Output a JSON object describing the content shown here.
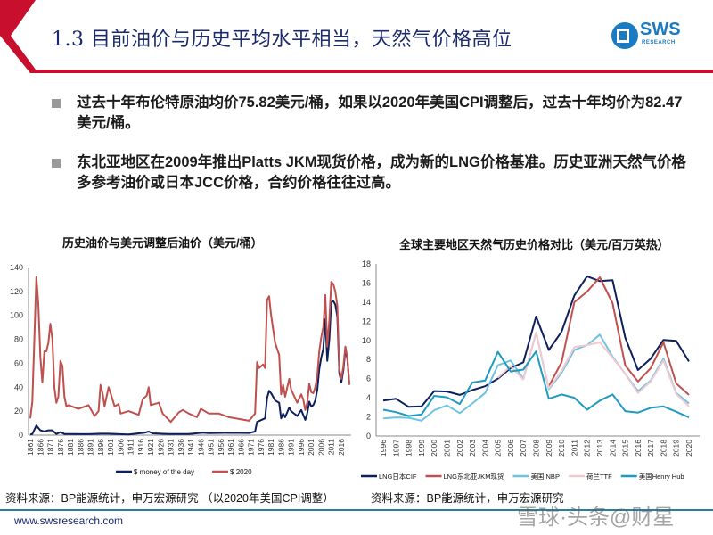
{
  "header": {
    "title": "1.3 目前油价与历史平均水平相当，天然气价格高位",
    "logo_text": "SWS",
    "logo_sub": "RESEARCH"
  },
  "bullets": [
    "过去十年布伦特原油均价75.82美元/桶，如果以2020年美国CPI调整后，过去十年均价为82.47美元/桶。",
    "东北亚地区在2009年推出Platts JKM现货价格，成为新的LNG价格基准。历史亚洲天然气价格多参考油价或日本JCC价格，合约价格往往过高。"
  ],
  "chart_data": [
    {
      "type": "line",
      "title": "历史油价与美元调整后油价（美元/桶）",
      "xlabel": "",
      "ylabel": "",
      "ylim": [
        0,
        140
      ],
      "yticks": [
        0,
        20,
        40,
        60,
        80,
        100,
        120,
        140
      ],
      "xlim": [
        1861,
        2020
      ],
      "xticks": [
        1861,
        1866,
        1871,
        1876,
        1881,
        1886,
        1891,
        1896,
        1901,
        1906,
        1911,
        1916,
        1921,
        1926,
        1931,
        1936,
        1941,
        1946,
        1951,
        1956,
        1961,
        1966,
        1971,
        1976,
        1981,
        1986,
        1991,
        1996,
        2001,
        2006,
        2011,
        2016
      ],
      "legend": "bottom",
      "series": [
        {
          "name": "$ money of the day",
          "color": "#0d1f5c",
          "points": [
            [
              1861,
              0.5
            ],
            [
              1862,
              1
            ],
            [
              1864,
              8
            ],
            [
              1866,
              4
            ],
            [
              1868,
              3
            ],
            [
              1870,
              4
            ],
            [
              1872,
              4
            ],
            [
              1874,
              1
            ],
            [
              1876,
              2.5
            ],
            [
              1878,
              1
            ],
            [
              1880,
              1
            ],
            [
              1890,
              0.8
            ],
            [
              1896,
              1.2
            ],
            [
              1900,
              1.2
            ],
            [
              1910,
              0.6
            ],
            [
              1918,
              2
            ],
            [
              1920,
              3
            ],
            [
              1922,
              1.5
            ],
            [
              1930,
              1
            ],
            [
              1940,
              1
            ],
            [
              1947,
              2
            ],
            [
              1950,
              1.7
            ],
            [
              1960,
              1.9
            ],
            [
              1970,
              1.8
            ],
            [
              1973,
              3
            ],
            [
              1974,
              11
            ],
            [
              1978,
              14
            ],
            [
              1979,
              31
            ],
            [
              1980,
              37
            ],
            [
              1981,
              35
            ],
            [
              1983,
              29
            ],
            [
              1985,
              27
            ],
            [
              1986,
              14
            ],
            [
              1987,
              18
            ],
            [
              1988,
              15
            ],
            [
              1990,
              23
            ],
            [
              1991,
              20
            ],
            [
              1994,
              16
            ],
            [
              1996,
              21
            ],
            [
              1998,
              12.7
            ],
            [
              1999,
              18
            ],
            [
              2000,
              28
            ],
            [
              2001,
              24
            ],
            [
              2002,
              25
            ],
            [
              2003,
              29
            ],
            [
              2004,
              38
            ],
            [
              2005,
              55
            ],
            [
              2006,
              65
            ],
            [
              2007,
              72
            ],
            [
              2008,
              97
            ],
            [
              2009,
              62
            ],
            [
              2010,
              80
            ],
            [
              2011,
              111
            ],
            [
              2012,
              112
            ],
            [
              2013,
              109
            ],
            [
              2014,
              99
            ],
            [
              2015,
              52
            ],
            [
              2016,
              44
            ],
            [
              2017,
              54
            ],
            [
              2018,
              71
            ],
            [
              2019,
              64
            ],
            [
              2020,
              42
            ]
          ]
        },
        {
          "name": "$ 2020",
          "color": "#c0504d",
          "points": [
            [
              1861,
              14
            ],
            [
              1862,
              28
            ],
            [
              1864,
              132
            ],
            [
              1865,
              110
            ],
            [
              1866,
              65
            ],
            [
              1867,
              44
            ],
            [
              1868,
              70
            ],
            [
              1869,
              70
            ],
            [
              1870,
              77
            ],
            [
              1871,
              93
            ],
            [
              1872,
              80
            ],
            [
              1873,
              40
            ],
            [
              1874,
              27
            ],
            [
              1875,
              32
            ],
            [
              1876,
              62
            ],
            [
              1877,
              58
            ],
            [
              1878,
              32
            ],
            [
              1879,
              24
            ],
            [
              1880,
              25
            ],
            [
              1885,
              22
            ],
            [
              1890,
              25
            ],
            [
              1893,
              16
            ],
            [
              1895,
              20
            ],
            [
              1896,
              42
            ],
            [
              1897,
              35
            ],
            [
              1898,
              24
            ],
            [
              1900,
              40
            ],
            [
              1901,
              35
            ],
            [
              1903,
              24
            ],
            [
              1905,
              26
            ],
            [
              1906,
              18
            ],
            [
              1910,
              20
            ],
            [
              1915,
              17
            ],
            [
              1917,
              30
            ],
            [
              1919,
              33
            ],
            [
              1920,
              40
            ],
            [
              1921,
              25
            ],
            [
              1925,
              27
            ],
            [
              1927,
              18
            ],
            [
              1931,
              11
            ],
            [
              1933,
              15
            ],
            [
              1935,
              19
            ],
            [
              1937,
              21
            ],
            [
              1940,
              18
            ],
            [
              1944,
              15
            ],
            [
              1946,
              22
            ],
            [
              1950,
              18
            ],
            [
              1955,
              18
            ],
            [
              1960,
              15
            ],
            [
              1970,
              12
            ],
            [
              1973,
              18
            ],
            [
              1974,
              61
            ],
            [
              1975,
              56
            ],
            [
              1977,
              59
            ],
            [
              1978,
              56
            ],
            [
              1979,
              113
            ],
            [
              1980,
              116
            ],
            [
              1981,
              100
            ],
            [
              1983,
              77
            ],
            [
              1985,
              67
            ],
            [
              1986,
              34
            ],
            [
              1987,
              42
            ],
            [
              1988,
              32
            ],
            [
              1990,
              47
            ],
            [
              1991,
              38
            ],
            [
              1994,
              27
            ],
            [
              1996,
              34
            ],
            [
              1997,
              30
            ],
            [
              1998,
              21
            ],
            [
              1999,
              27
            ],
            [
              2000,
              43
            ],
            [
              2001,
              36
            ],
            [
              2002,
              35
            ],
            [
              2003,
              40
            ],
            [
              2004,
              50
            ],
            [
              2005,
              70
            ],
            [
              2006,
              82
            ],
            [
              2007,
              90
            ],
            [
              2008,
              117
            ],
            [
              2009,
              74
            ],
            [
              2010,
              96
            ],
            [
              2011,
              128
            ],
            [
              2012,
              126
            ],
            [
              2013,
              120
            ],
            [
              2014,
              108
            ],
            [
              2015,
              55
            ],
            [
              2016,
              47
            ],
            [
              2017,
              57
            ],
            [
              2018,
              74
            ],
            [
              2019,
              65
            ],
            [
              2020,
              42
            ]
          ]
        }
      ]
    },
    {
      "type": "line",
      "title": "全球主要地区天然气历史价格对比（美元/百万英热）",
      "xlabel": "",
      "ylabel": "",
      "ylim": [
        0,
        18
      ],
      "yticks": [
        0,
        2,
        4,
        6,
        8,
        10,
        12,
        14,
        16,
        18
      ],
      "categories": [
        "1996",
        "1997",
        "1998",
        "1999",
        "2000",
        "2001",
        "2002",
        "2003",
        "2004",
        "2005",
        "2006",
        "2007",
        "2008",
        "2009",
        "2010",
        "2011",
        "2012",
        "2013",
        "2014",
        "2015",
        "2016",
        "2017",
        "2018",
        "2019",
        "2020"
      ],
      "legend": "bottom",
      "series": [
        {
          "name": "LNG日本CIF",
          "color": "#0d1f5c",
          "values": [
            3.7,
            3.9,
            3.05,
            3.1,
            4.7,
            4.65,
            4.3,
            4.8,
            5.2,
            6.0,
            7.1,
            7.7,
            12.5,
            9.0,
            10.9,
            14.7,
            16.7,
            16.2,
            16.3,
            10.3,
            6.9,
            8.1,
            10.05,
            9.95,
            7.8
          ]
        },
        {
          "name": "LNG东北亚JKM现货",
          "color": "#c0504d",
          "values": [
            null,
            null,
            null,
            null,
            null,
            null,
            null,
            null,
            null,
            null,
            null,
            null,
            null,
            5.2,
            7.7,
            14.0,
            15.1,
            16.6,
            13.9,
            7.4,
            5.7,
            7.1,
            9.8,
            5.5,
            4.3
          ]
        },
        {
          "name": "美国 NBP",
          "color": "#6fc3e0",
          "values": [
            1.85,
            1.95,
            1.9,
            1.6,
            2.7,
            3.2,
            2.4,
            3.4,
            4.5,
            7.4,
            7.9,
            6.0,
            10.8,
            4.9,
            6.6,
            9.0,
            9.5,
            10.6,
            8.3,
            6.5,
            4.7,
            5.8,
            8.1,
            4.5,
            3.4
          ]
        },
        {
          "name": "荷兰TTF",
          "color": "#f2c9cf",
          "values": [
            null,
            null,
            null,
            null,
            null,
            null,
            null,
            null,
            null,
            6.1,
            7.3,
            5.9,
            10.8,
            5.0,
            6.8,
            9.3,
            9.5,
            9.8,
            8.2,
            6.5,
            4.5,
            5.7,
            7.9,
            4.4,
            3.1
          ]
        },
        {
          "name": "美国Henry Hub",
          "color": "#1f9bbf",
          "values": [
            2.75,
            2.5,
            2.1,
            2.25,
            4.2,
            4.05,
            3.35,
            5.6,
            5.8,
            8.8,
            6.75,
            6.95,
            8.85,
            3.9,
            4.35,
            4.0,
            2.75,
            3.7,
            4.35,
            2.6,
            2.45,
            2.95,
            3.1,
            2.55,
            1.95
          ]
        }
      ]
    }
  ],
  "footer": {
    "source_left": "资料来源：BP能源统计，申万宏源研究 （以2020年美国CPI调整）",
    "source_right": "资料来源：BP能源统计，申万宏源研究",
    "url": "www.swsresearch.com",
    "watermark": "雪球·头条@财星"
  }
}
